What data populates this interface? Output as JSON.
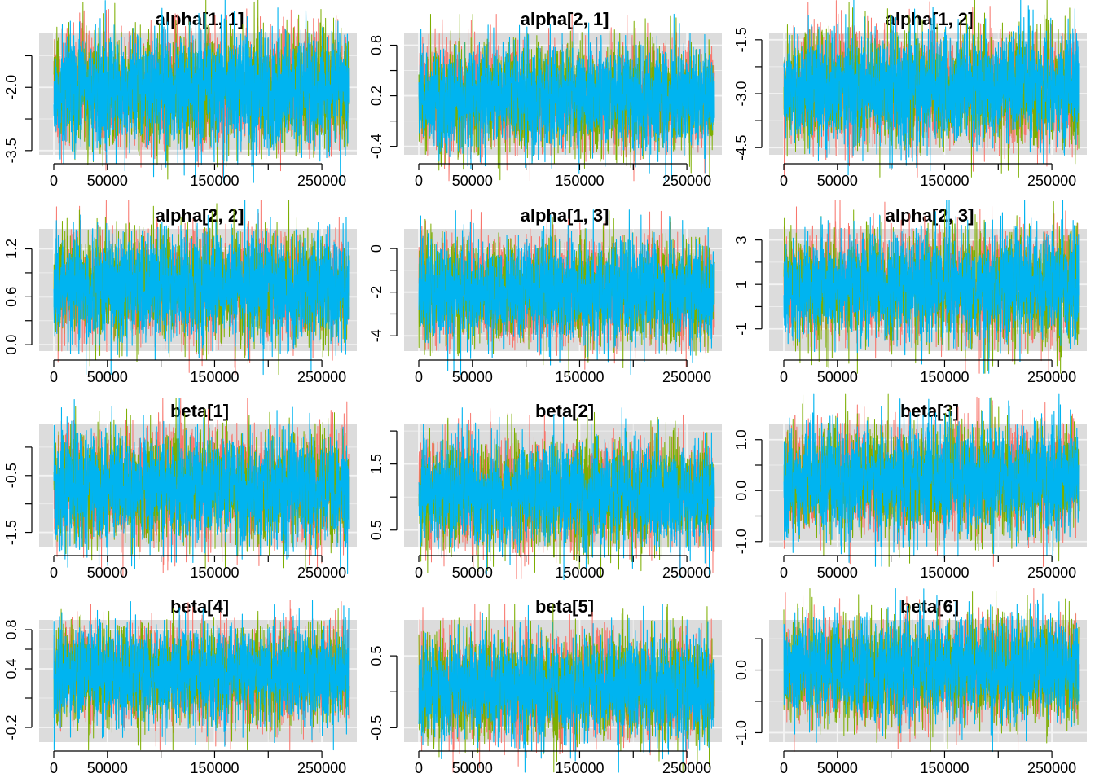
{
  "chart_data": [
    {
      "type": "line",
      "title": "alpha[1, 1]",
      "xlim": [
        0,
        275000
      ],
      "ylim": [
        -3.6,
        -0.7
      ],
      "xticks": [
        0,
        50000,
        150000,
        250000
      ],
      "xtick_labels": [
        "0",
        "50000",
        "150000",
        "250000"
      ],
      "xminor": [
        100000,
        200000
      ],
      "yticks": [
        -3.5,
        -2.0
      ],
      "ytick_labels": [
        "-3.5",
        "-2.0"
      ],
      "yminor": [
        -2.75,
        -1.25
      ],
      "grid": true,
      "center": -2.05,
      "spread": 0.85,
      "series": [
        {
          "name": "",
          "color": "#f8766d"
        },
        {
          "name": "",
          "color": "#7cae00"
        },
        {
          "name": "",
          "color": "#00b4f0"
        }
      ]
    },
    {
      "type": "line",
      "title": "alpha[2, 1]",
      "xlim": [
        0,
        275000
      ],
      "ylim": [
        -0.5,
        0.95
      ],
      "xticks": [
        0,
        50000,
        150000,
        250000
      ],
      "xtick_labels": [
        "0",
        "50000",
        "150000",
        "250000"
      ],
      "xminor": [
        100000,
        200000
      ],
      "yticks": [
        -0.4,
        0.2,
        0.8
      ],
      "ytick_labels": [
        "-0.4",
        "0.2",
        "0.8"
      ],
      "yminor": [
        -0.1,
        0.5
      ],
      "grid": true,
      "center": 0.18,
      "spread": 0.38,
      "series": [
        {
          "name": "",
          "color": "#f8766d"
        },
        {
          "name": "",
          "color": "#7cae00"
        },
        {
          "name": "",
          "color": "#00b4f0"
        }
      ]
    },
    {
      "type": "line",
      "title": "alpha[1, 2]",
      "xlim": [
        0,
        275000
      ],
      "ylim": [
        -4.7,
        -1.3
      ],
      "xticks": [
        0,
        50000,
        150000,
        250000
      ],
      "xtick_labels": [
        "0",
        "50000",
        "150000",
        "250000"
      ],
      "xminor": [
        100000,
        200000
      ],
      "yticks": [
        -4.5,
        -3.0,
        -1.5
      ],
      "ytick_labels": [
        "-4.5",
        "-3.0",
        "-1.5"
      ],
      "yminor": [
        -3.75,
        -2.25
      ],
      "grid": true,
      "center": -2.85,
      "spread": 0.95,
      "series": [
        {
          "name": "",
          "color": "#f8766d"
        },
        {
          "name": "",
          "color": "#7cae00"
        },
        {
          "name": "",
          "color": "#00b4f0"
        }
      ]
    },
    {
      "type": "line",
      "title": "alpha[2, 2]",
      "xlim": [
        0,
        275000
      ],
      "ylim": [
        -0.08,
        1.45
      ],
      "xticks": [
        0,
        50000,
        150000,
        250000
      ],
      "xtick_labels": [
        "0",
        "50000",
        "150000",
        "250000"
      ],
      "xminor": [
        100000,
        200000
      ],
      "yticks": [
        0.0,
        0.6,
        1.2
      ],
      "ytick_labels": [
        "0.0",
        "0.6",
        "1.2"
      ],
      "yminor": [
        0.3,
        0.9
      ],
      "grid": true,
      "center": 0.72,
      "spread": 0.42,
      "series": [
        {
          "name": "",
          "color": "#f8766d"
        },
        {
          "name": "",
          "color": "#7cae00"
        },
        {
          "name": "",
          "color": "#00b4f0"
        }
      ]
    },
    {
      "type": "line",
      "title": "alpha[1, 3]",
      "xlim": [
        0,
        275000
      ],
      "ylim": [
        -4.7,
        0.9
      ],
      "xticks": [
        0,
        50000,
        150000,
        250000
      ],
      "xtick_labels": [
        "0",
        "50000",
        "150000",
        "250000"
      ],
      "xminor": [
        100000,
        200000
      ],
      "yticks": [
        -4,
        -2,
        0
      ],
      "ytick_labels": [
        "-4",
        "-2",
        "0"
      ],
      "yminor": [
        -3,
        -1
      ],
      "grid": true,
      "center": -2.0,
      "spread": 1.45,
      "series": [
        {
          "name": "",
          "color": "#f8766d"
        },
        {
          "name": "",
          "color": "#7cae00"
        },
        {
          "name": "",
          "color": "#00b4f0"
        }
      ]
    },
    {
      "type": "line",
      "title": "alpha[2, 3]",
      "xlim": [
        0,
        275000
      ],
      "ylim": [
        -2.0,
        3.5
      ],
      "xticks": [
        0,
        50000,
        150000,
        250000
      ],
      "xtick_labels": [
        "0",
        "50000",
        "150000",
        "250000"
      ],
      "xminor": [
        100000,
        200000
      ],
      "yticks": [
        -1,
        1,
        3
      ],
      "ytick_labels": [
        "-1",
        "1",
        "3"
      ],
      "yminor": [
        0,
        2
      ],
      "grid": true,
      "center": 0.9,
      "spread": 1.5,
      "series": [
        {
          "name": "",
          "color": "#f8766d"
        },
        {
          "name": "",
          "color": "#7cae00"
        },
        {
          "name": "",
          "color": "#00b4f0"
        }
      ]
    },
    {
      "type": "line",
      "title": "beta[1]",
      "xlim": [
        0,
        275000
      ],
      "ylim": [
        -1.75,
        0.4
      ],
      "xticks": [
        0,
        50000,
        150000,
        250000
      ],
      "xtick_labels": [
        "0",
        "50000",
        "150000",
        "250000"
      ],
      "xminor": [
        100000,
        200000
      ],
      "yticks": [
        -1.5,
        -0.5
      ],
      "ytick_labels": [
        "-1.5",
        "-0.5"
      ],
      "yminor": [
        -1.0,
        0.0
      ],
      "grid": true,
      "center": -0.7,
      "spread": 0.6,
      "series": [
        {
          "name": "",
          "color": "#f8766d"
        },
        {
          "name": "",
          "color": "#7cae00"
        },
        {
          "name": "",
          "color": "#00b4f0"
        }
      ]
    },
    {
      "type": "line",
      "title": "beta[2]",
      "xlim": [
        0,
        275000
      ],
      "ylim": [
        0.25,
        2.1
      ],
      "xticks": [
        0,
        50000,
        150000,
        250000
      ],
      "xtick_labels": [
        "0",
        "50000",
        "150000",
        "250000"
      ],
      "xminor": [
        100000,
        200000
      ],
      "yticks": [
        0.5,
        1.5
      ],
      "ytick_labels": [
        "0.5",
        "1.5"
      ],
      "yminor": [
        1.0,
        2.0
      ],
      "grid": true,
      "center": 1.05,
      "spread": 0.5,
      "series": [
        {
          "name": "",
          "color": "#f8766d"
        },
        {
          "name": "",
          "color": "#7cae00"
        },
        {
          "name": "",
          "color": "#00b4f0"
        }
      ]
    },
    {
      "type": "line",
      "title": "beta[3]",
      "xlim": [
        0,
        275000
      ],
      "ylim": [
        -1.1,
        1.3
      ],
      "xticks": [
        0,
        50000,
        150000,
        250000
      ],
      "xtick_labels": [
        "0",
        "50000",
        "150000",
        "250000"
      ],
      "xminor": [
        100000,
        200000
      ],
      "yticks": [
        -1.0,
        0.0,
        1.0
      ],
      "ytick_labels": [
        "-1.0",
        "0.0",
        "1.0"
      ],
      "yminor": [
        -0.5,
        0.5
      ],
      "grid": true,
      "center": 0.2,
      "spread": 0.65,
      "series": [
        {
          "name": "",
          "color": "#f8766d"
        },
        {
          "name": "",
          "color": "#7cae00"
        },
        {
          "name": "",
          "color": "#00b4f0"
        }
      ]
    },
    {
      "type": "line",
      "title": "beta[4]",
      "xlim": [
        0,
        275000
      ],
      "ylim": [
        -0.35,
        0.9
      ],
      "xticks": [
        0,
        50000,
        150000,
        250000
      ],
      "xtick_labels": [
        "0",
        "50000",
        "150000",
        "250000"
      ],
      "xminor": [
        100000,
        200000
      ],
      "yticks": [
        -0.2,
        0.4,
        0.8
      ],
      "ytick_labels": [
        "-0.2",
        "0.4",
        "0.8"
      ],
      "yminor": [
        0.1,
        0.6
      ],
      "grid": true,
      "center": 0.35,
      "spread": 0.3,
      "series": [
        {
          "name": "",
          "color": "#f8766d"
        },
        {
          "name": "",
          "color": "#7cae00"
        },
        {
          "name": "",
          "color": "#00b4f0"
        }
      ]
    },
    {
      "type": "line",
      "title": "beta[5]",
      "xlim": [
        0,
        275000
      ],
      "ylim": [
        -0.7,
        1.0
      ],
      "xticks": [
        0,
        50000,
        150000,
        250000
      ],
      "xtick_labels": [
        "0",
        "50000",
        "150000",
        "250000"
      ],
      "xminor": [
        100000,
        200000
      ],
      "yticks": [
        -0.5,
        0.5
      ],
      "ytick_labels": [
        "-0.5",
        "0.5"
      ],
      "yminor": [
        0.0
      ],
      "grid": true,
      "center": 0.05,
      "spread": 0.45,
      "series": [
        {
          "name": "",
          "color": "#f8766d"
        },
        {
          "name": "",
          "color": "#7cae00"
        },
        {
          "name": "",
          "color": "#00b4f0"
        }
      ]
    },
    {
      "type": "line",
      "title": "beta[6]",
      "xlim": [
        0,
        275000
      ],
      "ylim": [
        -1.15,
        0.8
      ],
      "xticks": [
        0,
        50000,
        150000,
        250000
      ],
      "xtick_labels": [
        "0",
        "50000",
        "150000",
        "250000"
      ],
      "xminor": [
        100000,
        200000
      ],
      "yticks": [
        -1.0,
        0.0
      ],
      "ytick_labels": [
        "-1.0",
        "0.0"
      ],
      "yminor": [
        -0.5,
        0.5
      ],
      "grid": true,
      "center": 0.0,
      "spread": 0.5,
      "series": [
        {
          "name": "",
          "color": "#f8766d"
        },
        {
          "name": "",
          "color": "#7cae00"
        },
        {
          "name": "",
          "color": "#00b4f0"
        }
      ]
    }
  ]
}
